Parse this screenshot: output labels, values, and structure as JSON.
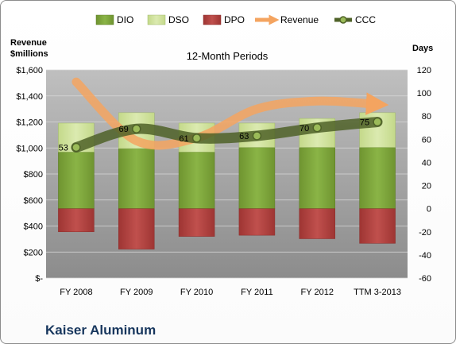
{
  "chart_data": {
    "type": "bar",
    "subtitle": "12-Month Periods",
    "company": "Kaiser Aluminum",
    "y_left_title": [
      "Revenue",
      "$millions"
    ],
    "y_right_title": "Days",
    "categories": [
      "FY 2008",
      "FY 2009",
      "FY 2010",
      "FY 2011",
      "FY 2012",
      "TTM 3-2013"
    ],
    "left_axis": {
      "min": 0,
      "max": 1600,
      "step": 200,
      "tick_labels": [
        "$-",
        "$200",
        "$400",
        "$600",
        "$800",
        "$1,000",
        "$1,200",
        "$1,400",
        "$1,600"
      ]
    },
    "right_axis": {
      "min": -60,
      "max": 120,
      "step": 20,
      "tick_labels": [
        "-60",
        "-40",
        "-20",
        "0",
        "20",
        "40",
        "60",
        "80",
        "100",
        "120"
      ]
    },
    "series": [
      {
        "name": "DIO",
        "axis": "right",
        "kind": "stacked-bar",
        "values": [
          49,
          52,
          49,
          53,
          53,
          53
        ]
      },
      {
        "name": "DSO",
        "axis": "right",
        "kind": "stacked-bar",
        "values": [
          25,
          31,
          25,
          21,
          25,
          30
        ]
      },
      {
        "name": "DPO",
        "axis": "right",
        "kind": "negative-bar",
        "values": [
          -20,
          -35,
          -24,
          -23,
          -26,
          -30
        ]
      },
      {
        "name": "Revenue",
        "axis": "left",
        "kind": "line",
        "values": [
          1508,
          1055,
          1078,
          1300,
          1360,
          1335
        ]
      },
      {
        "name": "CCC",
        "axis": "right",
        "kind": "line",
        "values": [
          53,
          69,
          61,
          63,
          70,
          75
        ]
      }
    ],
    "ccc_labels": [
      "53",
      "69",
      "61",
      "63",
      "70",
      "75"
    ],
    "colors": {
      "dio": "#7ea33b",
      "dso": "#d1e3a0",
      "dpo": "#c0504d",
      "revenue": "#f4a460",
      "ccc": "#4f6228",
      "plot_bg": "#a6a6a6"
    },
    "grid": true,
    "legend_position": "top"
  }
}
